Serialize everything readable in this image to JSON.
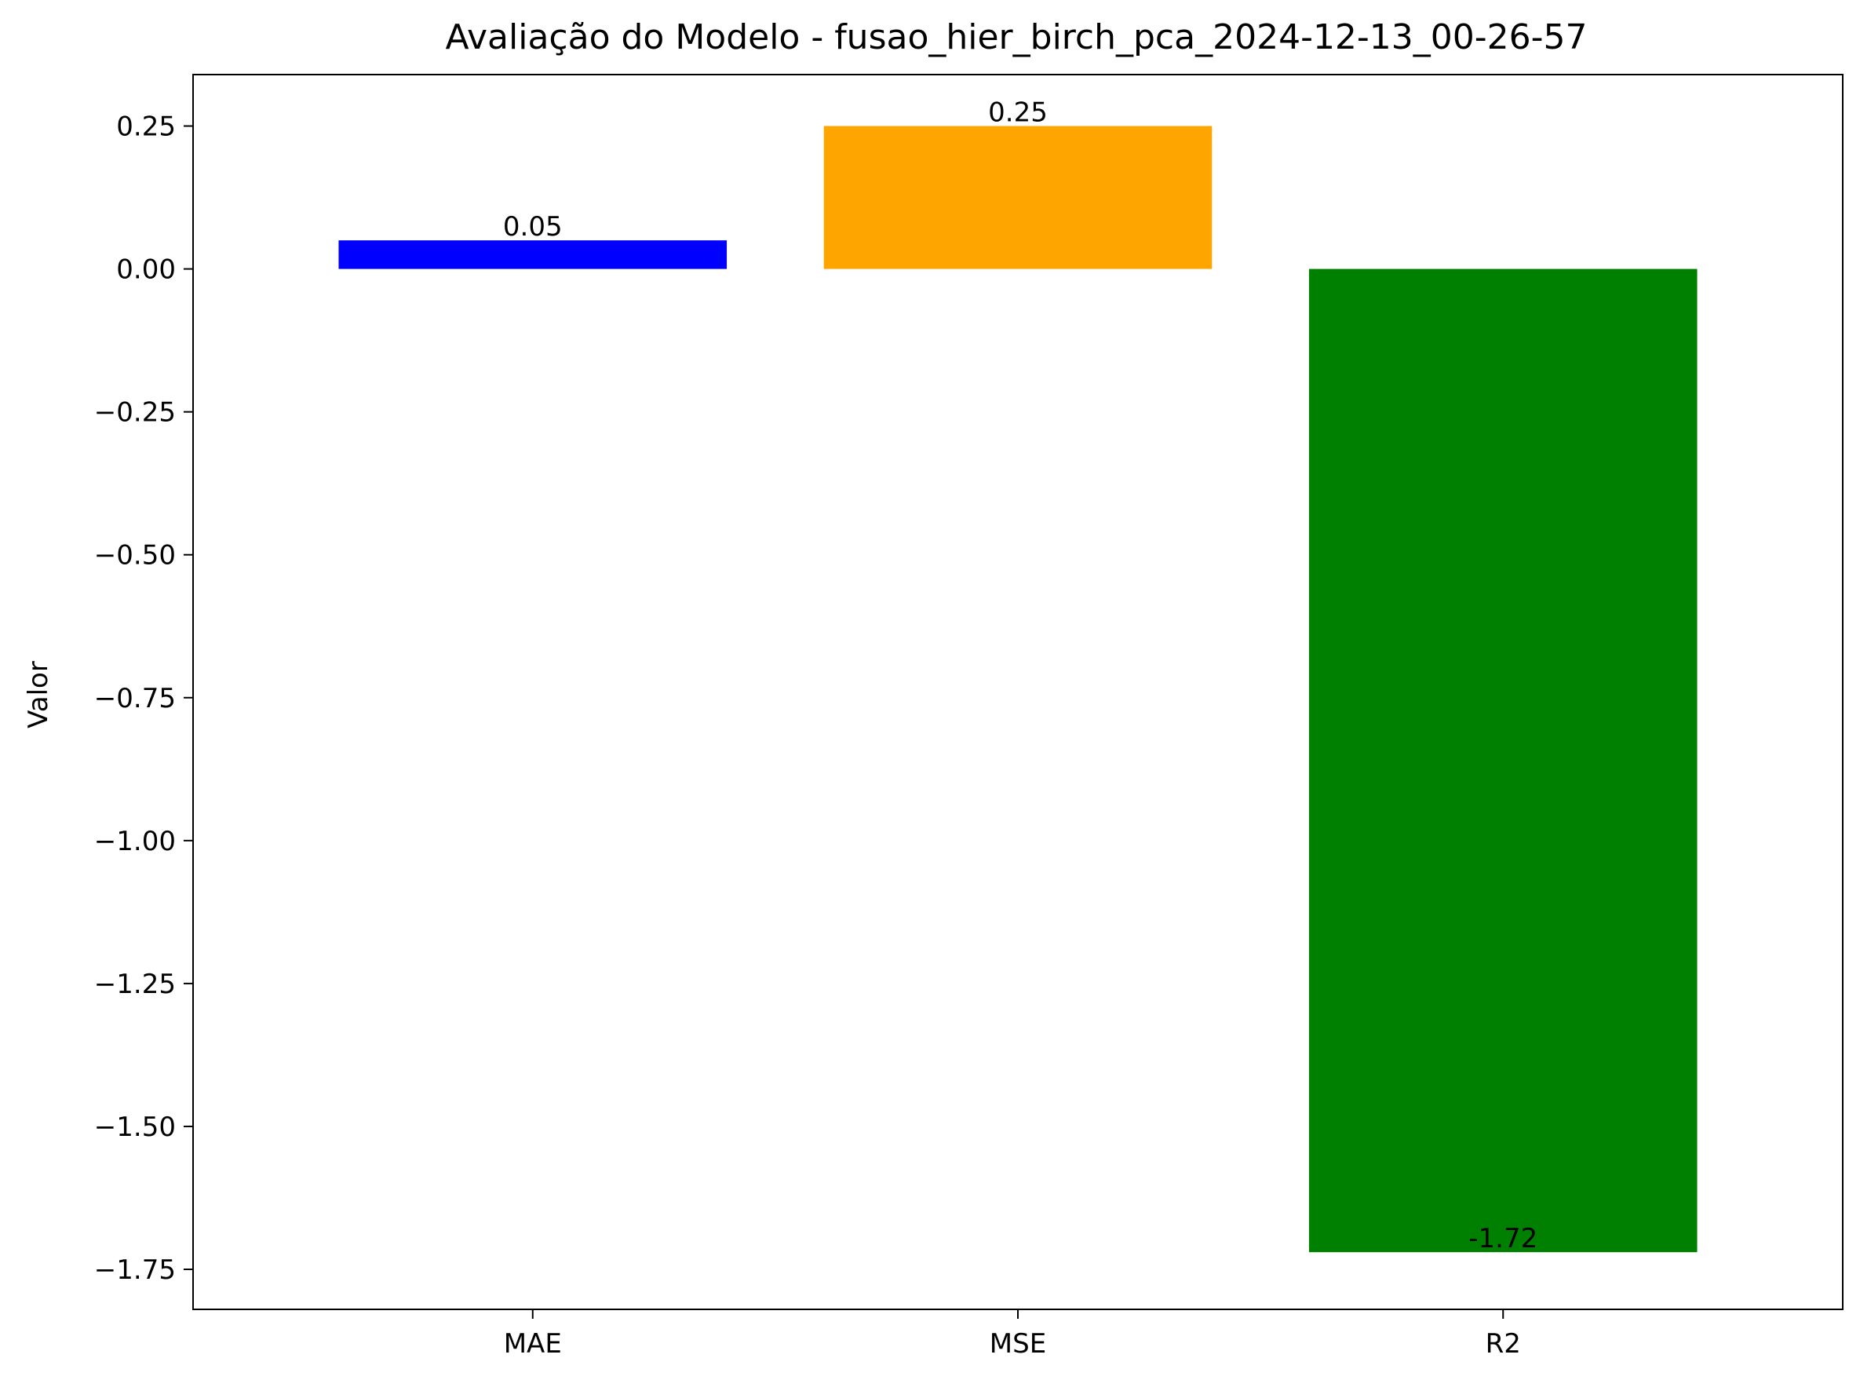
{
  "chart_data": {
    "type": "bar",
    "title": "Avaliação do Modelo - fusao_hier_birch_pca_2024-12-13_00-26-57",
    "xlabel": "",
    "ylabel": "Valor",
    "categories": [
      "MAE",
      "MSE",
      "R2"
    ],
    "values": [
      0.05,
      0.25,
      -1.72
    ],
    "data_labels": [
      "0.05",
      "0.25",
      "-1.72"
    ],
    "colors": [
      "#0000ff",
      "#ffa500",
      "#008000"
    ],
    "ylim": [
      -1.82,
      0.34
    ],
    "yticks": [
      0.25,
      0.0,
      -0.25,
      -0.5,
      -0.75,
      -1.0,
      -1.25,
      -1.5,
      -1.75
    ],
    "ytick_labels": [
      "0.25",
      "0.00",
      "−0.25",
      "−0.50",
      "−0.75",
      "−1.00",
      "−1.25",
      "−1.50",
      "−1.75"
    ],
    "grid": false,
    "legend": "none"
  }
}
